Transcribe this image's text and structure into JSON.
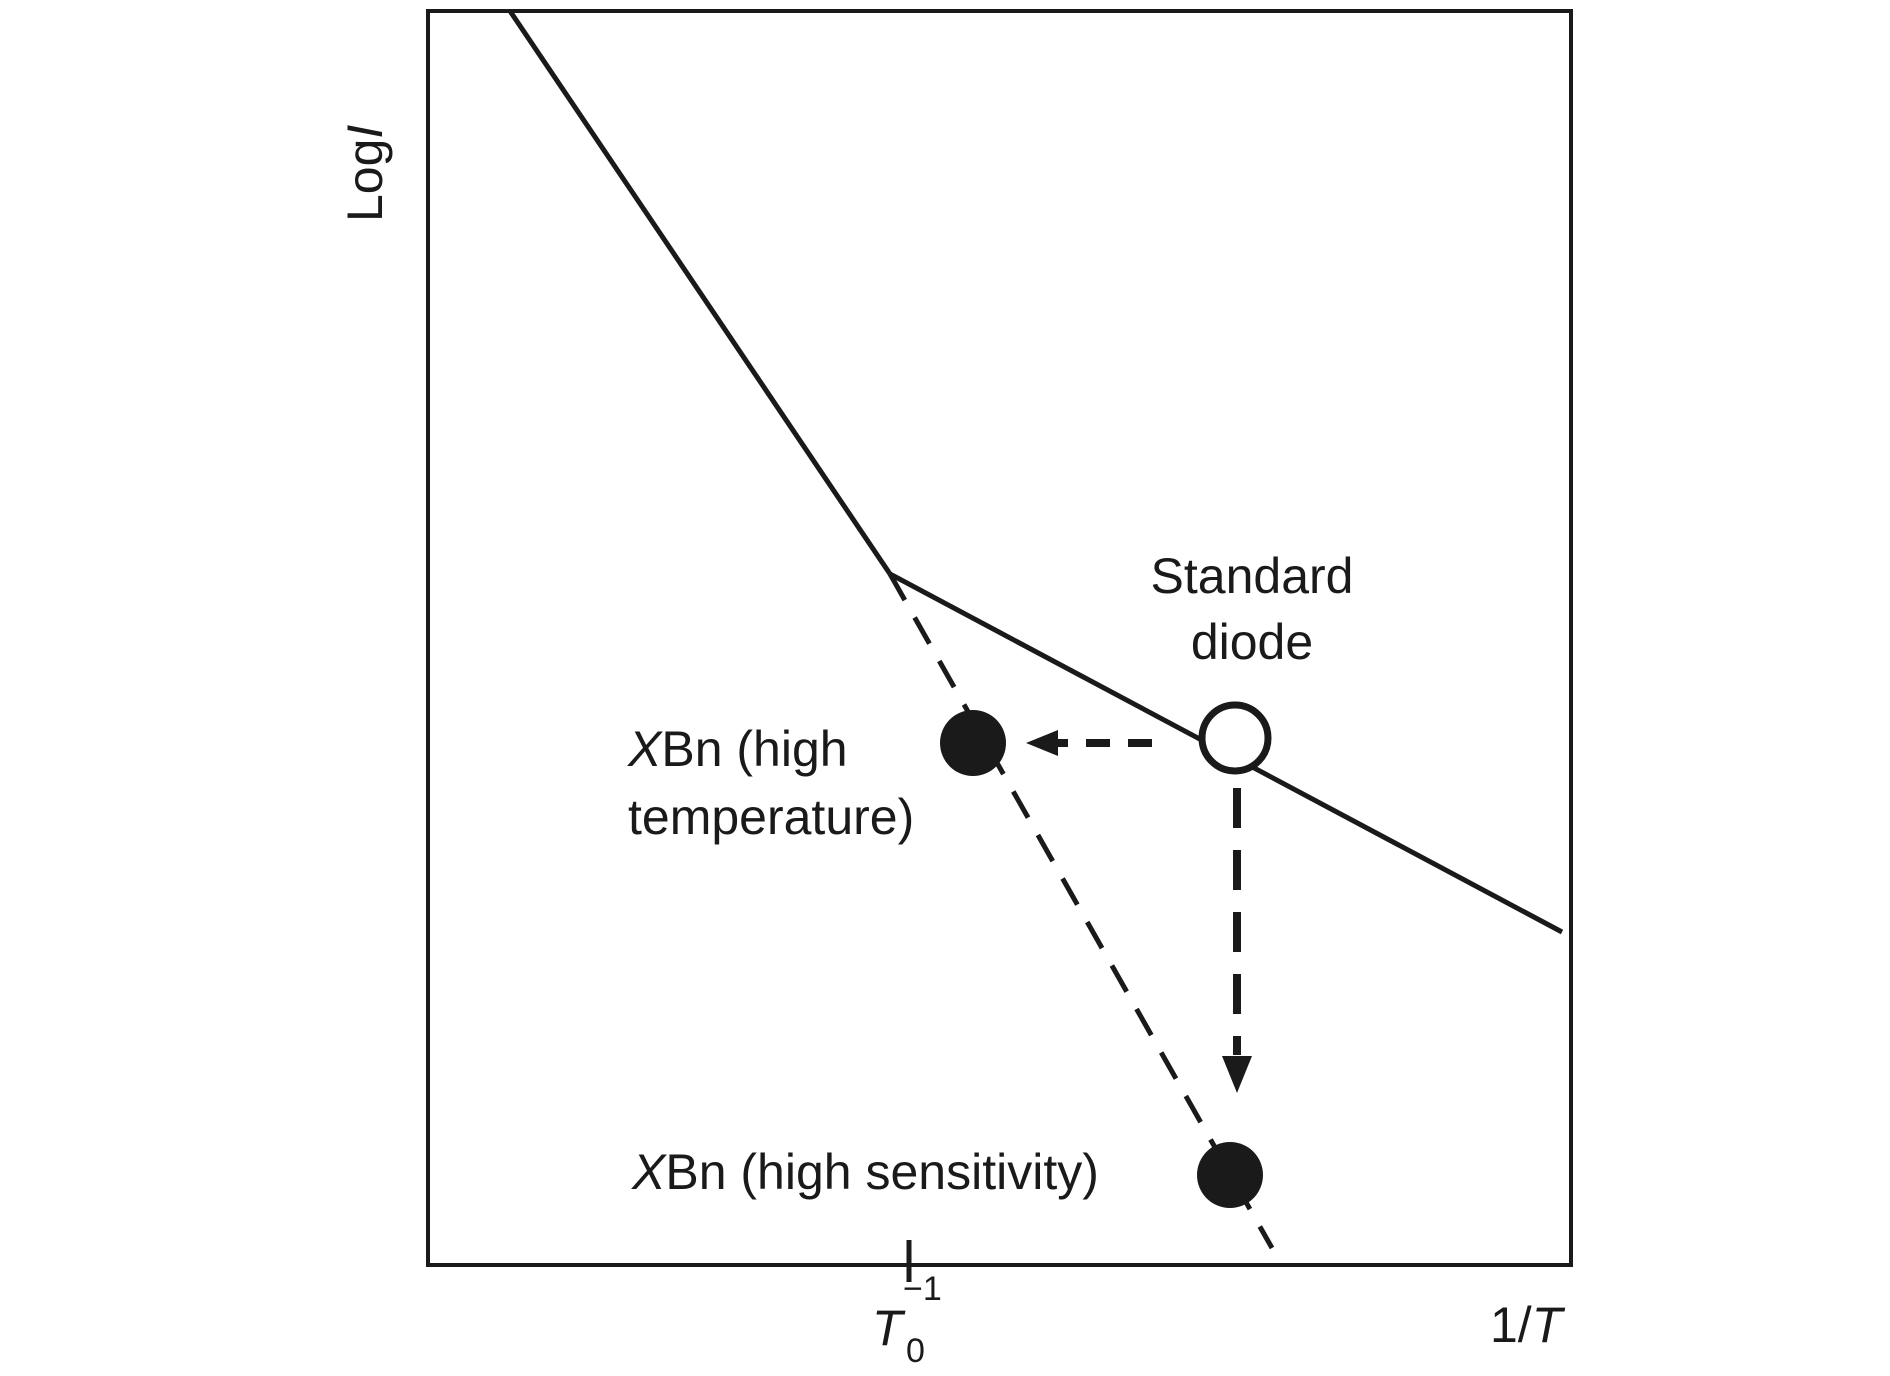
{
  "axes": {
    "y_label": {
      "text": "Log",
      "italic": "I"
    },
    "x_label": {
      "text": "1/",
      "italic": "T"
    },
    "x_tick": {
      "base": "T",
      "subscript": "0",
      "superscript": "−1"
    }
  },
  "labels": {
    "standard_line1": "Standard",
    "standard_line2": "diode",
    "xbn_ht_x": "X",
    "xbn_ht_line1": "Bn (high",
    "xbn_ht_line2": "temperature)",
    "xbn_hs_x": "X",
    "xbn_hs_line1": "Bn (high sensitivity)"
  },
  "colors": {
    "ink": "#1a1a1a",
    "background": "#ffffff"
  }
}
